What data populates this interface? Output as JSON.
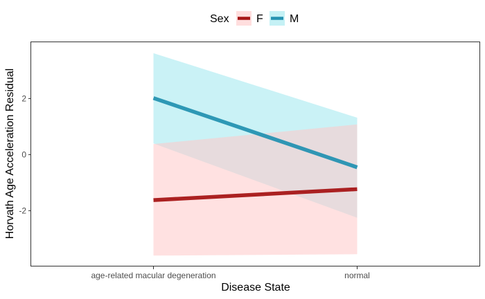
{
  "chart_data": {
    "type": "line",
    "xlabel": "Disease State",
    "ylabel": "Horvath Age Acceleration Residual",
    "categories": [
      "age-related macular degeneration",
      "normal"
    ],
    "yticks": [
      -2,
      0,
      2
    ],
    "ytick_labels": [
      "-2",
      "0",
      "2"
    ],
    "ylim": [
      -4,
      4
    ],
    "grid": false,
    "legend": {
      "title": "Sex",
      "position": "top",
      "entries": [
        "F",
        "M"
      ]
    },
    "series": [
      {
        "name": "F",
        "values": [
          -1.62,
          -1.23
        ],
        "ci_lower": [
          -3.6,
          -3.55
        ],
        "ci_upper": [
          0.38,
          1.08
        ],
        "line_color": "#a61616",
        "band_color": "#ffc8c8"
      },
      {
        "name": "M",
        "values": [
          2.02,
          -0.45
        ],
        "ci_lower": [
          0.4,
          -2.25
        ],
        "ci_upper": [
          3.62,
          1.32
        ],
        "line_color": "#2592b1",
        "band_color": "#9fe7ee"
      }
    ]
  }
}
